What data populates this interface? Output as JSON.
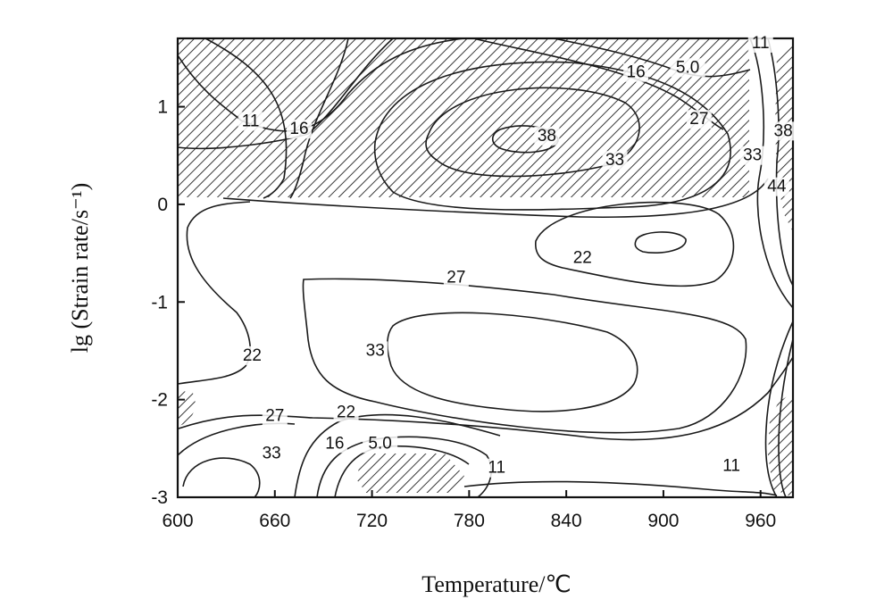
{
  "chart_data": {
    "type": "contour",
    "xlabel": "Temperature/℃",
    "ylabel": "lg (Strain rate/s⁻¹)",
    "xlim": [
      600,
      980
    ],
    "ylim": [
      -3,
      1.7
    ],
    "xticks": [
      "600",
      "660",
      "720",
      "780",
      "840",
      "900",
      "960"
    ],
    "yticks": [
      "1",
      "0",
      "-1",
      "-2",
      "-3"
    ],
    "contour_labels": [
      {
        "text": "11",
        "x": 645,
        "y": 0.8
      },
      {
        "text": "16",
        "x": 675,
        "y": 0.72
      },
      {
        "text": "38",
        "x": 828,
        "y": 0.65
      },
      {
        "text": "33",
        "x": 870,
        "y": 0.4
      },
      {
        "text": "27",
        "x": 922,
        "y": 0.82
      },
      {
        "text": "16",
        "x": 883,
        "y": 1.3
      },
      {
        "text": "5.0",
        "x": 915,
        "y": 1.35
      },
      {
        "text": "11",
        "x": 960,
        "y": 1.6
      },
      {
        "text": "38",
        "x": 974,
        "y": 0.7
      },
      {
        "text": "33",
        "x": 955,
        "y": 0.45
      },
      {
        "text": "44",
        "x": 970,
        "y": 0.13
      },
      {
        "text": "22",
        "x": 850,
        "y": -0.6
      },
      {
        "text": "27",
        "x": 772,
        "y": -0.8
      },
      {
        "text": "33",
        "x": 722,
        "y": -1.55
      },
      {
        "text": "22",
        "x": 646,
        "y": -1.6
      },
      {
        "text": "27",
        "x": 660,
        "y": -2.22
      },
      {
        "text": "22",
        "x": 704,
        "y": -2.18
      },
      {
        "text": "33",
        "x": 658,
        "y": -2.6
      },
      {
        "text": "16",
        "x": 697,
        "y": -2.5
      },
      {
        "text": "5.0",
        "x": 725,
        "y": -2.5
      },
      {
        "text": "11",
        "x": 797,
        "y": -2.75
      },
      {
        "text": "11",
        "x": 942,
        "y": -2.73
      }
    ],
    "unstable_regions": [
      "lg strain rate above 0.1 from 600 to 950 ℃",
      "near 600 ℃ at lg strain rate -2",
      "720–775 ℃ at lg strain rate -2.6 to -3",
      "above 965 ℃ at high and low strain rates"
    ],
    "grid": false,
    "legend": "none"
  }
}
